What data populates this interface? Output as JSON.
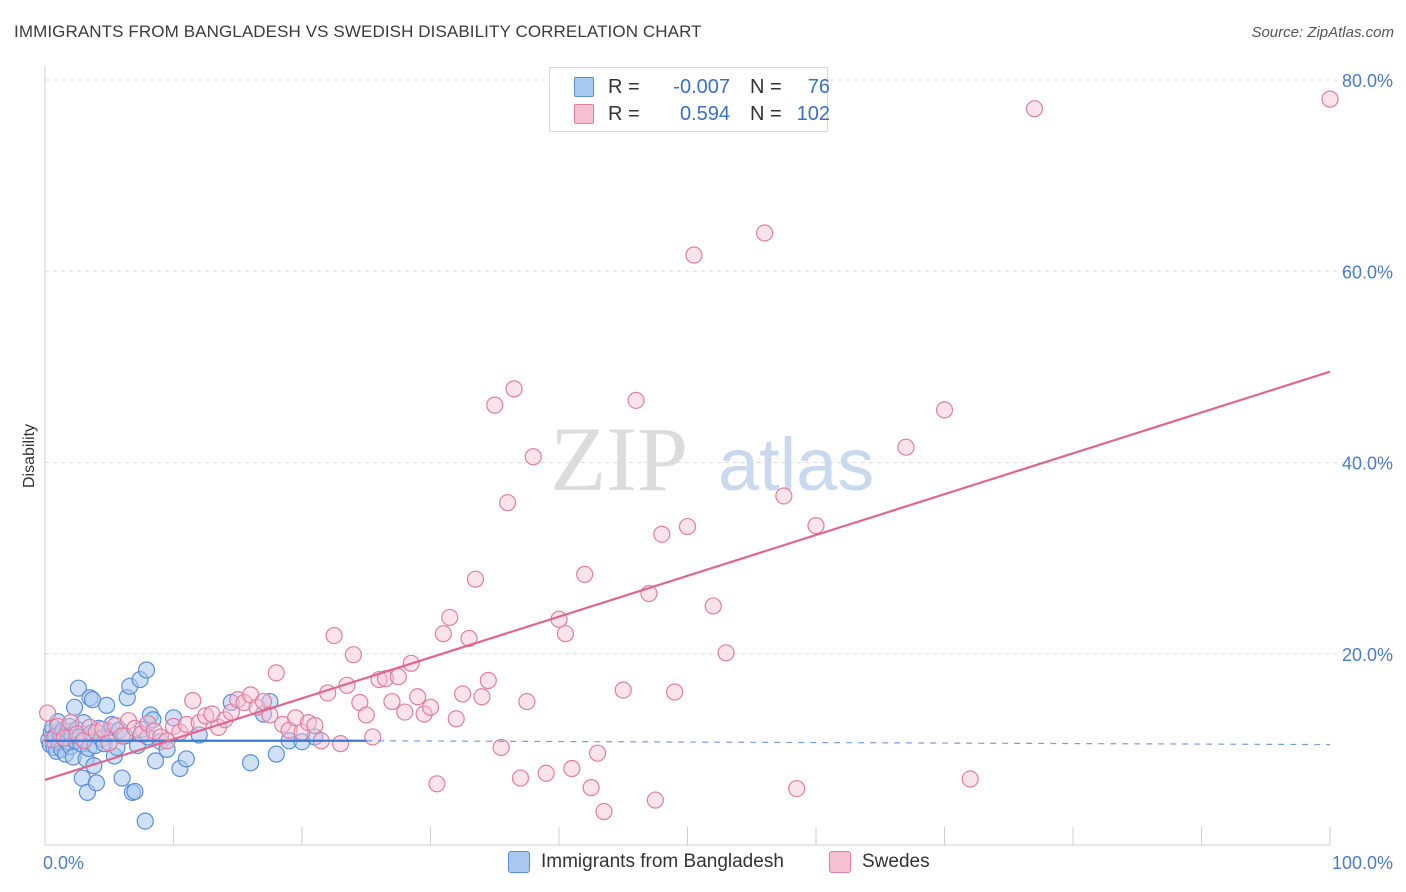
{
  "title": "IMMIGRANTS FROM BANGLADESH VS SWEDISH DISABILITY CORRELATION CHART",
  "source": "Source: ZipAtlas.com",
  "watermark": {
    "zip": "ZIP",
    "atlas": "atlas"
  },
  "legend_top": [
    {
      "r_label": "R =",
      "r_value": "-0.007",
      "n_label": "N =",
      "n_value": "76"
    },
    {
      "r_label": "R =",
      "r_value": "0.594",
      "n_label": "N =",
      "n_value": "102"
    }
  ],
  "bottom_legend": [
    "Immigrants from Bangladesh",
    "Swedes"
  ],
  "colors": {
    "blue_fill": "#a9c8f0",
    "blue_stroke": "#5a8fd6",
    "blue_line": "#3b78d0",
    "pink_fill": "#f6c0d2",
    "pink_stroke": "#e07fa0",
    "pink_line": "#e0668e",
    "tick_text": "#4a7cc7",
    "grid": "#dddddd"
  },
  "chart_data": {
    "type": "scatter",
    "title": "IMMIGRANTS FROM BANGLADESH VS SWEDISH DISABILITY CORRELATION CHART",
    "xlabel": "",
    "ylabel": "Disability",
    "xlim": [
      0,
      100
    ],
    "ylim": [
      0,
      80
    ],
    "x_tick_labels": [
      "0.0%",
      "100.0%"
    ],
    "y_ticks": [
      20,
      40,
      60,
      80
    ],
    "y_tick_labels": [
      "20.0%",
      "40.0%",
      "60.0%",
      "80.0%"
    ],
    "series": [
      {
        "name": "Immigrants from Bangladesh",
        "R": -0.007,
        "N": 76,
        "trend": {
          "x0": 0,
          "y0": 10.9,
          "x1": 25,
          "y1": 10.9,
          "dashed_to": 100,
          "dashed_y": 10.5
        },
        "points": [
          [
            0.3,
            11.0
          ],
          [
            0.4,
            10.5
          ],
          [
            0.5,
            11.8
          ],
          [
            0.6,
            12.3
          ],
          [
            0.7,
            10.2
          ],
          [
            0.8,
            11.4
          ],
          [
            0.9,
            9.8
          ],
          [
            1.0,
            12.9
          ],
          [
            1.1,
            10.7
          ],
          [
            1.2,
            11.6
          ],
          [
            1.3,
            10.0
          ],
          [
            1.4,
            12.0
          ],
          [
            1.5,
            11.1
          ],
          [
            1.6,
            9.5
          ],
          [
            1.7,
            10.8
          ],
          [
            1.8,
            11.9
          ],
          [
            1.9,
            12.4
          ],
          [
            2.0,
            10.3
          ],
          [
            2.1,
            11.5
          ],
          [
            2.2,
            9.2
          ],
          [
            2.3,
            14.4
          ],
          [
            2.4,
            10.9
          ],
          [
            2.5,
            12.1
          ],
          [
            2.6,
            16.4
          ],
          [
            2.7,
            11.3
          ],
          [
            2.8,
            10.6
          ],
          [
            2.9,
            7.0
          ],
          [
            3.0,
            12.8
          ],
          [
            3.1,
            11.0
          ],
          [
            3.2,
            9.0
          ],
          [
            3.3,
            5.5
          ],
          [
            3.4,
            10.1
          ],
          [
            3.5,
            15.4
          ],
          [
            3.6,
            11.7
          ],
          [
            3.7,
            15.2
          ],
          [
            3.8,
            8.3
          ],
          [
            3.9,
            10.4
          ],
          [
            4.0,
            6.5
          ],
          [
            4.2,
            12.2
          ],
          [
            4.4,
            11.1
          ],
          [
            4.6,
            10.6
          ],
          [
            4.8,
            14.6
          ],
          [
            5.0,
            11.9
          ],
          [
            5.2,
            12.6
          ],
          [
            5.4,
            9.3
          ],
          [
            5.6,
            10.2
          ],
          [
            5.8,
            12.0
          ],
          [
            6.0,
            7.0
          ],
          [
            6.2,
            11.4
          ],
          [
            6.4,
            15.4
          ],
          [
            6.6,
            16.6
          ],
          [
            6.8,
            5.5
          ],
          [
            7.0,
            5.6
          ],
          [
            7.2,
            10.4
          ],
          [
            7.4,
            17.3
          ],
          [
            7.6,
            12.1
          ],
          [
            7.8,
            2.5
          ],
          [
            7.9,
            18.3
          ],
          [
            8.0,
            11.3
          ],
          [
            8.2,
            13.6
          ],
          [
            8.4,
            13.1
          ],
          [
            8.6,
            8.8
          ],
          [
            9.0,
            10.8
          ],
          [
            9.5,
            10.0
          ],
          [
            10.0,
            13.3
          ],
          [
            10.5,
            8.0
          ],
          [
            11.0,
            9.0
          ],
          [
            12.0,
            11.5
          ],
          [
            14.5,
            14.9
          ],
          [
            16.0,
            8.6
          ],
          [
            17.0,
            13.7
          ],
          [
            17.5,
            15.0
          ],
          [
            18.0,
            9.5
          ],
          [
            19.0,
            10.9
          ],
          [
            20.0,
            10.8
          ],
          [
            21.0,
            11.3
          ]
        ]
      },
      {
        "name": "Swedes",
        "R": 0.594,
        "N": 102,
        "trend": {
          "x0": 0,
          "y0": 6.8,
          "x1": 100,
          "y1": 49.5
        },
        "points": [
          [
            0.2,
            13.8
          ],
          [
            0.6,
            11.0
          ],
          [
            1.0,
            12.4
          ],
          [
            1.5,
            11.2
          ],
          [
            2.0,
            12.8
          ],
          [
            2.5,
            11.6
          ],
          [
            3.0,
            10.9
          ],
          [
            3.5,
            12.3
          ],
          [
            4.0,
            11.8
          ],
          [
            4.5,
            12.1
          ],
          [
            5.0,
            10.7
          ],
          [
            5.5,
            12.5
          ],
          [
            6.0,
            11.4
          ],
          [
            6.5,
            13.0
          ],
          [
            7.0,
            12.2
          ],
          [
            7.5,
            11.6
          ],
          [
            8.0,
            12.7
          ],
          [
            8.5,
            11.9
          ],
          [
            9.0,
            11.3
          ],
          [
            9.5,
            10.9
          ],
          [
            10.0,
            12.4
          ],
          [
            10.5,
            11.8
          ],
          [
            11.0,
            12.6
          ],
          [
            11.5,
            15.1
          ],
          [
            12.0,
            12.8
          ],
          [
            12.5,
            13.5
          ],
          [
            13.0,
            13.7
          ],
          [
            13.5,
            12.3
          ],
          [
            14.0,
            13.1
          ],
          [
            14.5,
            13.9
          ],
          [
            15.0,
            15.2
          ],
          [
            15.5,
            14.9
          ],
          [
            16.0,
            15.7
          ],
          [
            16.5,
            14.4
          ],
          [
            17.0,
            15.0
          ],
          [
            17.5,
            13.6
          ],
          [
            18.0,
            18.0
          ],
          [
            18.5,
            12.6
          ],
          [
            19.0,
            12.0
          ],
          [
            19.5,
            13.3
          ],
          [
            20.0,
            11.8
          ],
          [
            20.5,
            12.8
          ],
          [
            21.0,
            12.5
          ],
          [
            21.5,
            10.9
          ],
          [
            22.0,
            15.9
          ],
          [
            22.5,
            21.9
          ],
          [
            23.0,
            10.6
          ],
          [
            23.5,
            16.7
          ],
          [
            24.0,
            19.9
          ],
          [
            24.5,
            14.9
          ],
          [
            25.0,
            13.6
          ],
          [
            25.5,
            11.3
          ],
          [
            26.0,
            17.3
          ],
          [
            26.5,
            17.4
          ],
          [
            27.0,
            15.0
          ],
          [
            27.5,
            17.6
          ],
          [
            28.0,
            13.9
          ],
          [
            28.5,
            19.0
          ],
          [
            29.0,
            15.5
          ],
          [
            29.5,
            13.7
          ],
          [
            30.0,
            14.4
          ],
          [
            30.5,
            6.4
          ],
          [
            31.0,
            22.1
          ],
          [
            31.5,
            23.8
          ],
          [
            32.0,
            13.2
          ],
          [
            32.5,
            15.8
          ],
          [
            33.0,
            21.6
          ],
          [
            33.5,
            27.8
          ],
          [
            34.0,
            15.5
          ],
          [
            34.5,
            17.2
          ],
          [
            35.0,
            46.0
          ],
          [
            35.5,
            10.2
          ],
          [
            36.0,
            35.8
          ],
          [
            36.5,
            47.7
          ],
          [
            37.0,
            7.0
          ],
          [
            37.5,
            15.0
          ],
          [
            38.0,
            40.6
          ],
          [
            39.0,
            7.5
          ],
          [
            40.0,
            23.6
          ],
          [
            40.5,
            22.1
          ],
          [
            41.0,
            8.0
          ],
          [
            42.0,
            28.3
          ],
          [
            42.5,
            6.0
          ],
          [
            43.0,
            9.6
          ],
          [
            43.5,
            3.5
          ],
          [
            45.0,
            16.2
          ],
          [
            46.0,
            46.5
          ],
          [
            47.0,
            26.3
          ],
          [
            47.5,
            4.7
          ],
          [
            48.0,
            32.5
          ],
          [
            49.0,
            16.0
          ],
          [
            50.0,
            33.3
          ],
          [
            50.5,
            61.7
          ],
          [
            52.0,
            25.0
          ],
          [
            53.0,
            20.1
          ],
          [
            56.0,
            64.0
          ],
          [
            57.5,
            36.5
          ],
          [
            58.5,
            5.9
          ],
          [
            60.0,
            33.4
          ],
          [
            67.0,
            41.6
          ],
          [
            70.0,
            45.5
          ],
          [
            72.0,
            6.9
          ],
          [
            77.0,
            77.0
          ],
          [
            100.0,
            78.0
          ]
        ]
      }
    ]
  }
}
